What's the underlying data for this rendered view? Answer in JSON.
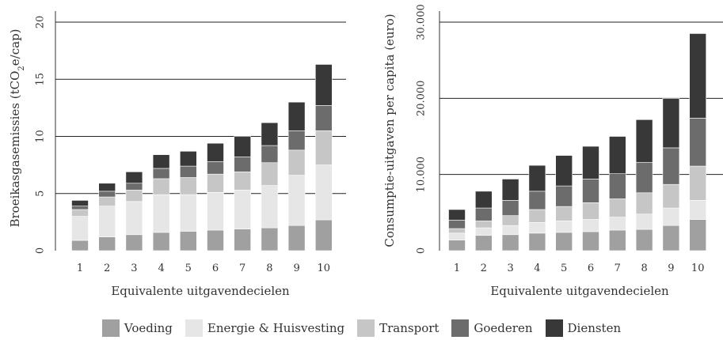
{
  "chart_data": [
    {
      "type": "bar",
      "stacked": true,
      "xlabel": "Equivalente uitgavendecielen",
      "ylabel": "Broeikasgasemissies (tCO",
      "ylabel_sub": "2",
      "ylabel_tail": "e/cap)",
      "ylim": [
        0,
        20
      ],
      "yticks": [
        "0",
        "5",
        "10",
        "15",
        "20"
      ],
      "ytick_values": [
        0,
        5,
        10,
        15,
        20
      ],
      "grid": true,
      "categories": [
        "1",
        "2",
        "3",
        "4",
        "5",
        "6",
        "7",
        "8",
        "9",
        "10"
      ],
      "series": [
        {
          "name": "Voeding",
          "values": [
            0.9,
            1.2,
            1.4,
            1.6,
            1.7,
            1.8,
            1.9,
            2.0,
            2.2,
            2.7
          ]
        },
        {
          "name": "Energie & Huisvesting",
          "values": [
            2.1,
            2.7,
            2.9,
            3.3,
            3.2,
            3.3,
            3.4,
            3.7,
            4.4,
            4.8
          ]
        },
        {
          "name": "Transport",
          "values": [
            0.6,
            0.8,
            1.0,
            1.4,
            1.5,
            1.6,
            1.6,
            2.0,
            2.2,
            3.0
          ]
        },
        {
          "name": "Goederen",
          "values": [
            0.3,
            0.5,
            0.6,
            0.9,
            1.0,
            1.1,
            1.3,
            1.5,
            1.7,
            2.2
          ]
        },
        {
          "name": "Diensten",
          "values": [
            0.5,
            0.7,
            1.0,
            1.2,
            1.3,
            1.6,
            1.8,
            2.0,
            2.5,
            3.6
          ]
        }
      ]
    },
    {
      "type": "bar",
      "stacked": true,
      "xlabel": "Equivalente uitgavendecielen",
      "ylabel": "Consumptie-uitgaven per capita (euro)",
      "ylim": [
        0,
        30000
      ],
      "yticks": [
        "0",
        "10.000",
        "20.000",
        "30.000"
      ],
      "ytick_values": [
        0,
        10000,
        20000,
        30000
      ],
      "grid": true,
      "categories": [
        "1",
        "2",
        "3",
        "4",
        "5",
        "6",
        "7",
        "8",
        "9",
        "10"
      ],
      "series": [
        {
          "name": "Voeding",
          "values": [
            1400,
            2000,
            2100,
            2300,
            2400,
            2500,
            2700,
            2800,
            3300,
            4100
          ]
        },
        {
          "name": "Energie & Huisvesting",
          "values": [
            900,
            1000,
            1200,
            1400,
            1500,
            1600,
            1700,
            2000,
            2300,
            2500
          ]
        },
        {
          "name": "Transport",
          "values": [
            600,
            900,
            1300,
            1700,
            1900,
            2200,
            2400,
            2800,
            3100,
            4500
          ]
        },
        {
          "name": "Goederen",
          "values": [
            1100,
            1700,
            2000,
            2400,
            2700,
            3100,
            3300,
            4000,
            4800,
            6300
          ]
        },
        {
          "name": "Diensten",
          "values": [
            1400,
            2200,
            2800,
            3400,
            4000,
            4300,
            4900,
            5600,
            6500,
            11100
          ]
        }
      ]
    }
  ],
  "legend": [
    {
      "label": "Voeding",
      "color": "#a0a0a0"
    },
    {
      "label": "Energie & Huisvesting",
      "color": "#e6e6e6"
    },
    {
      "label": "Transport",
      "color": "#c6c6c6"
    },
    {
      "label": "Goederen",
      "color": "#6c6c6c"
    },
    {
      "label": "Diensten",
      "color": "#383838"
    }
  ]
}
